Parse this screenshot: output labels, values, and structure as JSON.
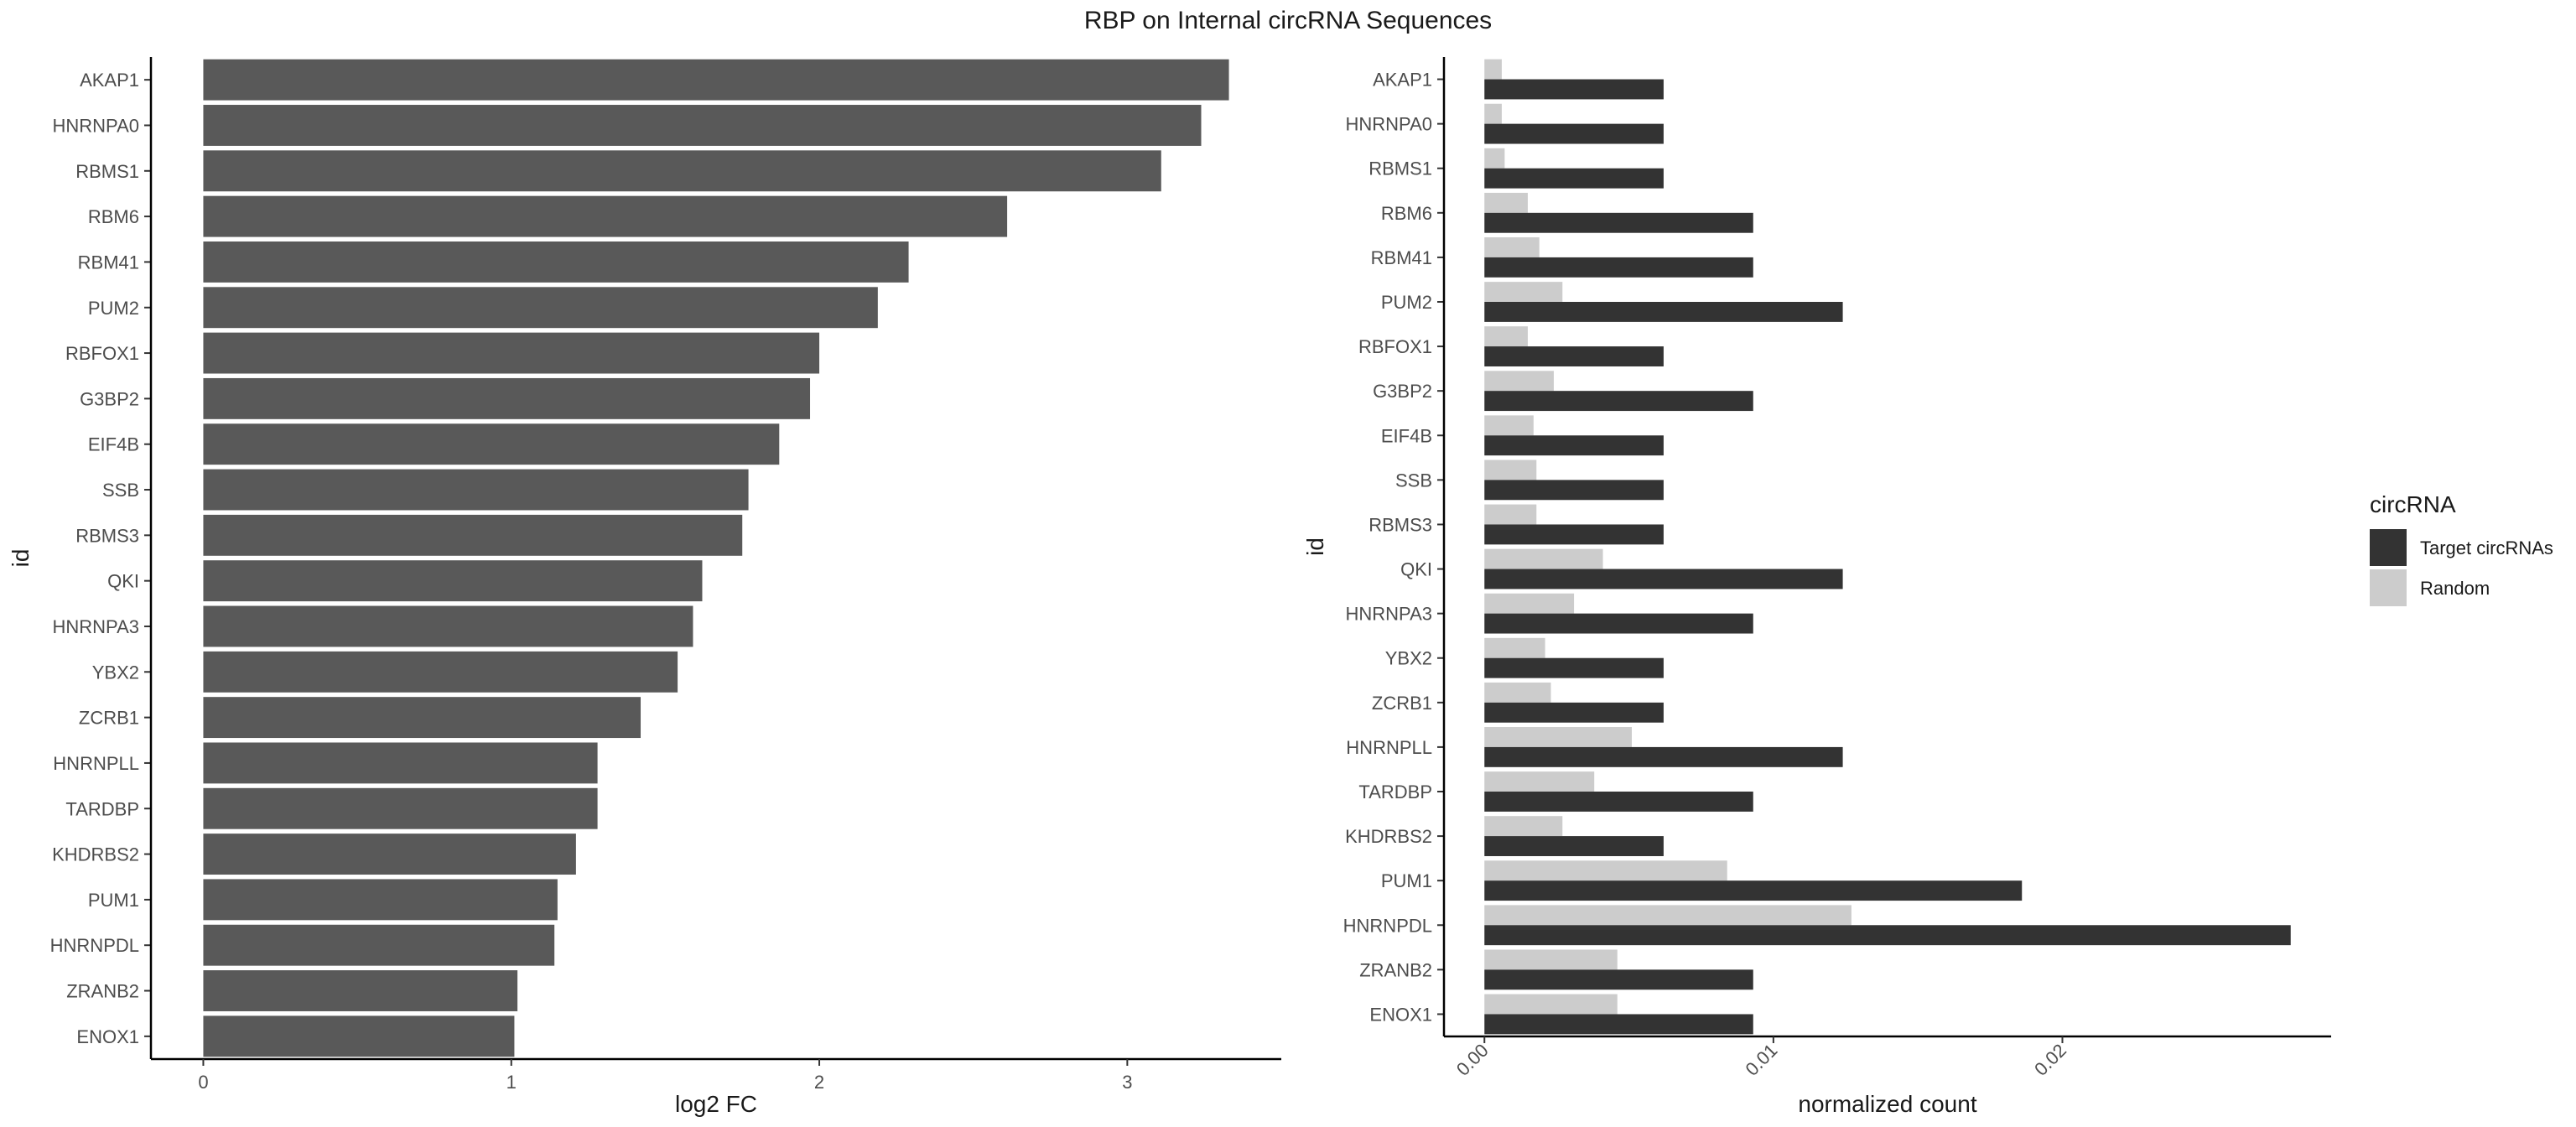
{
  "figure": {
    "title": "RBP on Internal circRNA Sequences"
  },
  "chart_data": [
    {
      "type": "bar",
      "orientation": "horizontal",
      "categories": [
        "AKAP1",
        "HNRNPA0",
        "RBMS1",
        "RBM6",
        "RBM41",
        "PUM2",
        "RBFOX1",
        "G3BP2",
        "EIF4B",
        "SSB",
        "RBMS3",
        "QKI",
        "HNRNPA3",
        "YBX2",
        "ZCRB1",
        "HNRNPLL",
        "TARDBP",
        "KHDRBS2",
        "PUM1",
        "HNRNPDL",
        "ZRANB2",
        "ENOX1"
      ],
      "values": [
        3.33,
        3.24,
        3.11,
        2.61,
        2.29,
        2.19,
        2.0,
        1.97,
        1.87,
        1.77,
        1.75,
        1.62,
        1.59,
        1.54,
        1.42,
        1.28,
        1.28,
        1.21,
        1.15,
        1.14,
        1.02,
        1.01
      ],
      "xlabel": "log2 FC",
      "ylabel": "id",
      "xlim": [
        -0.17,
        3.5
      ],
      "xticks": [
        0,
        1,
        2,
        3
      ],
      "bar_color": "#595959",
      "grid": false
    },
    {
      "type": "bar",
      "orientation": "horizontal",
      "categories": [
        "AKAP1",
        "HNRNPA0",
        "RBMS1",
        "RBM6",
        "RBM41",
        "PUM2",
        "RBFOX1",
        "G3BP2",
        "EIF4B",
        "SSB",
        "RBMS3",
        "QKI",
        "HNRNPA3",
        "YBX2",
        "ZCRB1",
        "HNRNPLL",
        "TARDBP",
        "KHDRBS2",
        "PUM1",
        "HNRNPDL",
        "ZRANB2",
        "ENOX1"
      ],
      "series": [
        {
          "name": "Target circRNAs",
          "color": "#333333",
          "values": [
            0.0062,
            0.0062,
            0.0062,
            0.0093,
            0.0093,
            0.0124,
            0.0062,
            0.0093,
            0.0062,
            0.0062,
            0.0062,
            0.0124,
            0.0093,
            0.0062,
            0.0062,
            0.0124,
            0.0093,
            0.0062,
            0.0186,
            0.0279,
            0.0093,
            0.0093
          ]
        },
        {
          "name": "Random",
          "color": "#cccccc",
          "values": [
            0.0006,
            0.0006,
            0.0007,
            0.0015,
            0.0019,
            0.0027,
            0.0015,
            0.0024,
            0.0017,
            0.0018,
            0.0018,
            0.0041,
            0.0031,
            0.0021,
            0.0023,
            0.0051,
            0.0038,
            0.0027,
            0.0084,
            0.0127,
            0.0046,
            0.0046
          ]
        }
      ],
      "xlabel": "normalized count",
      "ylabel": "id",
      "xlim": [
        -0.0014,
        0.0293
      ],
      "xticks": [
        0.0,
        0.01,
        0.02
      ],
      "xtick_labels": [
        "0.00",
        "0.01",
        "0.02"
      ],
      "xtick_rotation": 45,
      "legend": {
        "title": "circRNA",
        "position": "right",
        "entries": [
          "Target circRNAs",
          "Random"
        ]
      },
      "grid": false
    }
  ]
}
